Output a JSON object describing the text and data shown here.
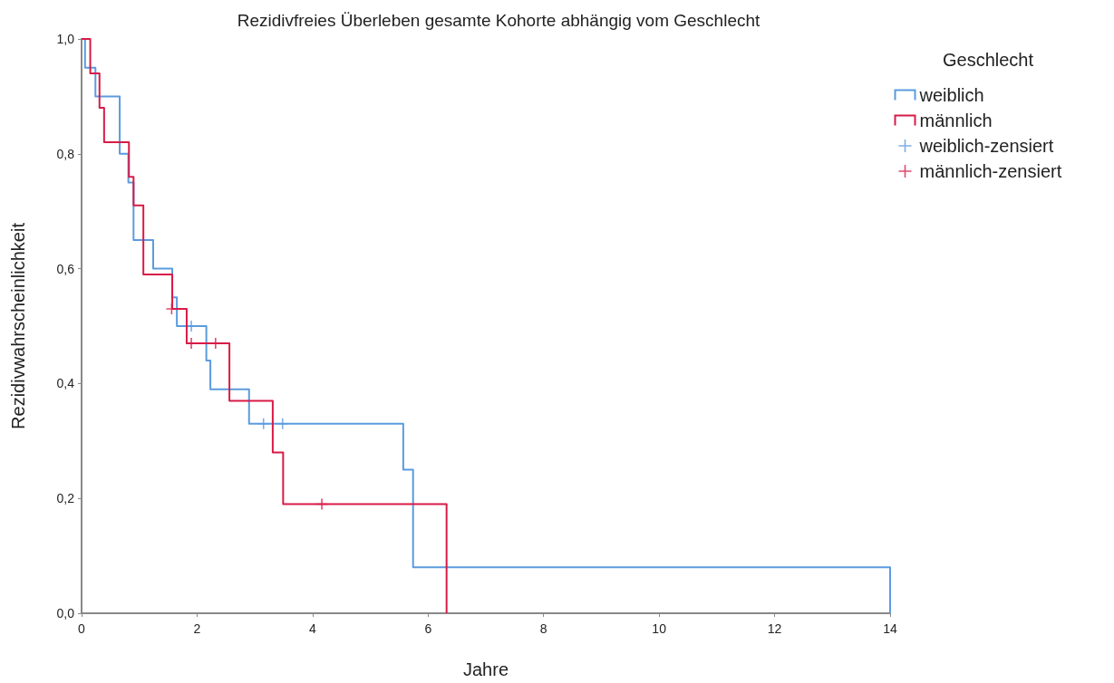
{
  "chart_data": {
    "type": "step",
    "title": "Rezidivfreies Überleben gesamte Kohorte abhängig vom Geschlecht",
    "xlabel": "Jahre",
    "ylabel": "Rezidivwahrscheinlichkeit",
    "legend_title": "Geschlecht",
    "legend": "top right",
    "grid": false,
    "xlim": [
      0,
      14
    ],
    "xticks": [
      0,
      2,
      4,
      6,
      8,
      10,
      12,
      14
    ],
    "ylim": [
      0,
      1
    ],
    "yticks": [
      {
        "value": 0,
        "label": "0,0"
      },
      {
        "value": 0.2,
        "label": "0,2"
      },
      {
        "value": 0.4,
        "label": "0,4"
      },
      {
        "value": 0.6,
        "label": "0,6"
      },
      {
        "value": 0.8,
        "label": "0,8"
      },
      {
        "value": 1,
        "label": "1,0"
      }
    ],
    "series": [
      {
        "name": "weiblich",
        "marker": "none",
        "color": "#5b9bde",
        "x": [
          0,
          0.06,
          0.24,
          0.66,
          0.81,
          0.9,
          1.24,
          1.57,
          1.65,
          2.16,
          2.23,
          2.9,
          5.57,
          5.74,
          14
        ],
        "values": [
          1,
          0.95,
          0.9,
          0.8,
          0.75,
          0.65,
          0.6,
          0.55,
          0.5,
          0.44,
          0.39,
          0.33,
          0.25,
          0.08,
          0
        ]
      },
      {
        "name": "männlich",
        "marker": "none",
        "color": "#d81b47",
        "x": [
          0,
          0.15,
          0.31,
          0.39,
          0.82,
          0.9,
          1.07,
          1.57,
          1.82,
          2.56,
          3.31,
          3.49,
          6.32
        ],
        "values": [
          1,
          0.94,
          0.88,
          0.82,
          0.76,
          0.71,
          0.59,
          0.53,
          0.47,
          0.37,
          0.28,
          0.19,
          0
        ]
      },
      {
        "name": "weiblich-zensiert",
        "type": "scatter",
        "marker": "cross",
        "color": "#5b9bde",
        "x": [
          1.9,
          3.15,
          3.48
        ],
        "values": [
          0.5,
          0.33,
          0.33
        ]
      },
      {
        "name": "männlich-zensiert",
        "type": "scatter",
        "marker": "cross",
        "color": "#d81b47",
        "x": [
          1.56,
          1.9,
          2.32,
          4.16
        ],
        "values": [
          0.53,
          0.47,
          0.47,
          0.19
        ]
      }
    ]
  }
}
